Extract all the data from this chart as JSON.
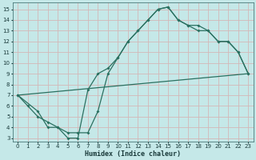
{
  "xlabel": "Humidex (Indice chaleur)",
  "xlim_min": -0.5,
  "xlim_max": 23.5,
  "ylim_min": 2.7,
  "ylim_max": 15.6,
  "xticks": [
    0,
    1,
    2,
    3,
    4,
    5,
    6,
    7,
    8,
    9,
    10,
    11,
    12,
    13,
    14,
    15,
    16,
    17,
    18,
    19,
    20,
    21,
    22,
    23
  ],
  "yticks": [
    3,
    4,
    5,
    6,
    7,
    8,
    9,
    10,
    11,
    12,
    13,
    14,
    15
  ],
  "bg_color": "#c5e8e8",
  "line_color": "#2a7060",
  "grid_color": "#d4b8b8",
  "curve1_x": [
    0,
    1,
    2,
    3,
    4,
    5,
    6,
    7,
    8,
    9,
    10,
    11,
    12,
    13,
    14,
    15,
    16,
    17,
    18,
    19,
    20,
    21,
    22,
    23
  ],
  "curve1_y": [
    7,
    6,
    5,
    4.5,
    4,
    3,
    3,
    7.5,
    9,
    9.5,
    10.5,
    12,
    13,
    14,
    15,
    15.2,
    14,
    13.5,
    13.5,
    13,
    12,
    12,
    11,
    9
  ],
  "curve2_x": [
    0,
    2,
    3,
    4,
    5,
    6,
    7,
    8,
    9,
    10,
    11,
    12,
    13,
    14,
    15,
    16,
    17,
    18,
    19,
    20,
    21,
    22,
    23
  ],
  "curve2_y": [
    7,
    5.5,
    4,
    4,
    3.5,
    3.5,
    3.5,
    5.5,
    9,
    10.5,
    12,
    13,
    14,
    15,
    15.2,
    14,
    13.5,
    13,
    13,
    12,
    12,
    11,
    9
  ],
  "line3_x": [
    0,
    23
  ],
  "line3_y": [
    7,
    9
  ]
}
